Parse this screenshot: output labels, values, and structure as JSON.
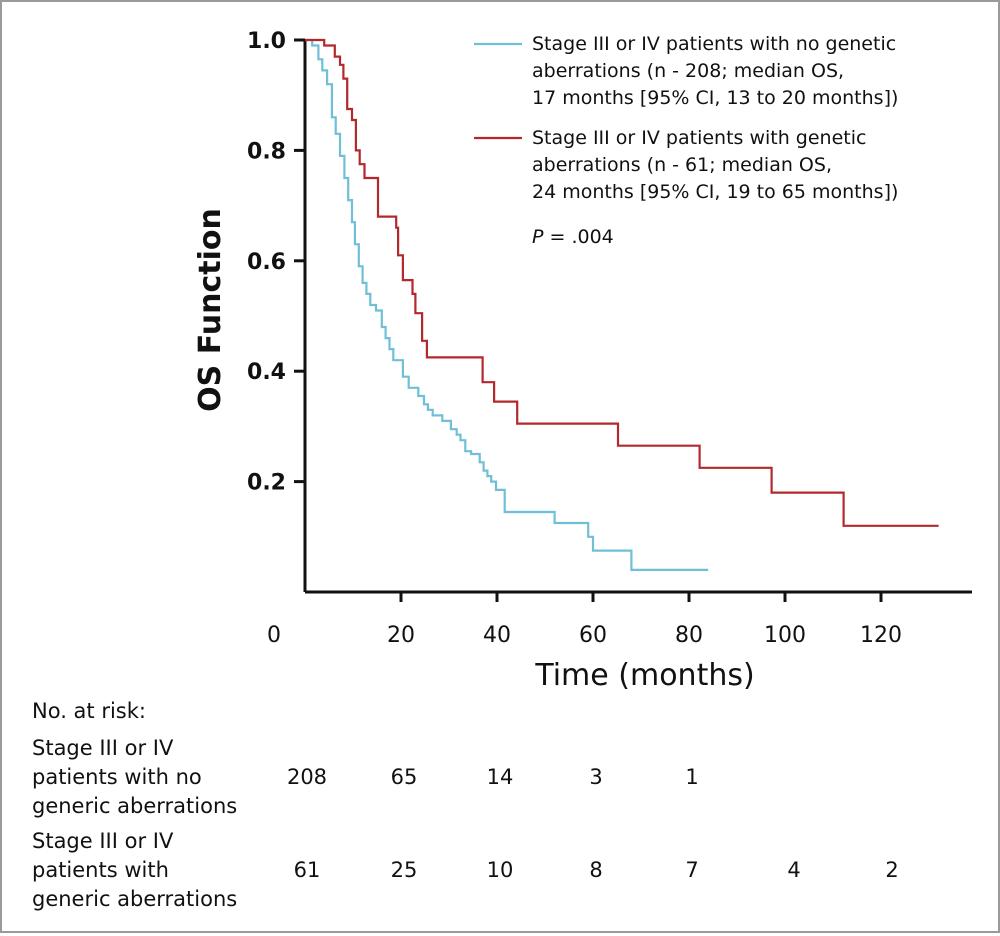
{
  "chart_data": {
    "type": "line",
    "title": "",
    "xlabel": "Time (months)",
    "ylabel": "OS Function",
    "xlim": [
      0,
      140
    ],
    "ylim": [
      0,
      1.0
    ],
    "x_ticks": [
      "0",
      "20",
      "40",
      "60",
      "80",
      "100",
      "120"
    ],
    "y_ticks": [
      "1.0",
      "0.8",
      "0.6",
      "0.4",
      "0.2"
    ],
    "legend_position": "top-right",
    "p_value_label": "P",
    "p_value_text": " = .004",
    "series": [
      {
        "name_lines": [
          "Stage III or IV patients with no genetic",
          "aberrations (n - 208; median OS,",
          "17 months [95% CI, 13 to 20 months])"
        ],
        "color": "#6fc0d6",
        "points": [
          [
            0,
            1.0
          ],
          [
            1.5,
            0.99
          ],
          [
            2.8,
            0.965
          ],
          [
            3.6,
            0.945
          ],
          [
            4.6,
            0.92
          ],
          [
            5.6,
            0.86
          ],
          [
            6.4,
            0.83
          ],
          [
            7.3,
            0.79
          ],
          [
            8.2,
            0.75
          ],
          [
            9.0,
            0.71
          ],
          [
            9.8,
            0.67
          ],
          [
            10.4,
            0.63
          ],
          [
            11.2,
            0.59
          ],
          [
            12.0,
            0.56
          ],
          [
            12.8,
            0.54
          ],
          [
            13.6,
            0.52
          ],
          [
            14.8,
            0.51
          ],
          [
            16.0,
            0.48
          ],
          [
            16.8,
            0.46
          ],
          [
            17.6,
            0.44
          ],
          [
            18.4,
            0.42
          ],
          [
            20.4,
            0.39
          ],
          [
            21.6,
            0.37
          ],
          [
            23.6,
            0.355
          ],
          [
            24.8,
            0.34
          ],
          [
            25.6,
            0.33
          ],
          [
            26.6,
            0.32
          ],
          [
            28.6,
            0.31
          ],
          [
            30.4,
            0.295
          ],
          [
            31.6,
            0.285
          ],
          [
            32.4,
            0.275
          ],
          [
            33.4,
            0.255
          ],
          [
            34.6,
            0.25
          ],
          [
            36.4,
            0.235
          ],
          [
            37.2,
            0.22
          ],
          [
            38.0,
            0.21
          ],
          [
            38.8,
            0.2
          ],
          [
            39.8,
            0.185
          ],
          [
            41.6,
            0.145
          ],
          [
            52.0,
            0.125
          ],
          [
            59.0,
            0.1
          ],
          [
            60.0,
            0.075
          ],
          [
            68.0,
            0.04
          ],
          [
            84.0,
            0.04
          ]
        ]
      },
      {
        "name_lines": [
          "Stage III or IV patients with genetic",
          "aberrations (n - 61; median OS,",
          "24 months [95% CI, 19 to 65 months])"
        ],
        "color": "#b3282d",
        "points": [
          [
            0,
            1.0
          ],
          [
            4.0,
            0.99
          ],
          [
            6.2,
            0.97
          ],
          [
            7.3,
            0.955
          ],
          [
            8.0,
            0.93
          ],
          [
            8.8,
            0.875
          ],
          [
            9.8,
            0.855
          ],
          [
            10.6,
            0.8
          ],
          [
            11.4,
            0.775
          ],
          [
            12.4,
            0.75
          ],
          [
            15.2,
            0.68
          ],
          [
            19.0,
            0.66
          ],
          [
            19.4,
            0.61
          ],
          [
            20.4,
            0.565
          ],
          [
            22.4,
            0.54
          ],
          [
            23.0,
            0.505
          ],
          [
            24.4,
            0.455
          ],
          [
            25.4,
            0.425
          ],
          [
            37.0,
            0.38
          ],
          [
            39.4,
            0.345
          ],
          [
            44.2,
            0.305
          ],
          [
            65.2,
            0.265
          ],
          [
            82.2,
            0.225
          ],
          [
            97.2,
            0.18
          ],
          [
            112.2,
            0.12
          ],
          [
            132.0,
            0.12
          ]
        ]
      }
    ]
  },
  "risk_table": {
    "header": "No. at risk:",
    "rows": [
      {
        "label_lines": [
          "Stage III or IV",
          "patients with no",
          "generic aberrations"
        ],
        "values": [
          "208",
          "65",
          "14",
          "3",
          "1",
          "",
          ""
        ]
      },
      {
        "label_lines": [
          "Stage III or IV",
          "patients with",
          "generic aberrations"
        ],
        "values": [
          "61",
          "25",
          "10",
          "8",
          "7",
          "4",
          "2"
        ]
      }
    ]
  }
}
